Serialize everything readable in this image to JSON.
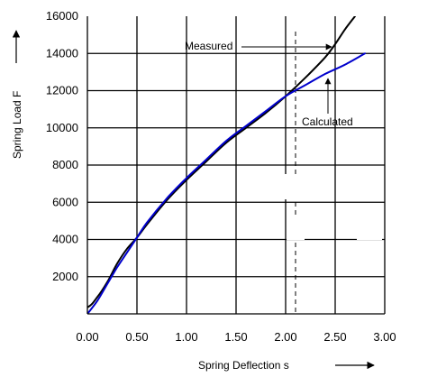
{
  "chart_data": {
    "type": "line",
    "xlabel": "Spring Deflection  s",
    "ylabel": "Spring Load  F",
    "xlim": [
      0,
      3
    ],
    "ylim": [
      0,
      16000
    ],
    "xticks": [
      0,
      0.5,
      1,
      1.5,
      2,
      2.5,
      3
    ],
    "yticks": [
      2000,
      4000,
      6000,
      8000,
      10000,
      12000,
      14000,
      16000
    ],
    "xtick_labels": [
      "0.00",
      "0.50",
      "1.00",
      "1.50",
      "2.00",
      "2.50",
      "3.00"
    ],
    "ytick_labels": [
      "2000",
      "4000",
      "6000",
      "8000",
      "10000",
      "12000",
      "14000",
      "16000"
    ],
    "grid": true,
    "reference_line_x": 2.1,
    "series": [
      {
        "name": "Measured",
        "color": "#000000",
        "x": [
          -0.5,
          -0.2,
          0,
          0.1,
          0.2,
          0.3,
          0.4,
          0.5,
          0.6,
          0.8,
          1.0,
          1.2,
          1.4,
          1.6,
          1.8,
          2.0,
          2.2,
          2.4,
          2.5,
          2.6,
          2.7
        ],
        "y": [
          0,
          100,
          350,
          900,
          1700,
          2700,
          3500,
          4100,
          4800,
          6100,
          7200,
          8200,
          9200,
          10000,
          10800,
          11700,
          12700,
          13800,
          14500,
          15300,
          16000
        ]
      },
      {
        "name": "Calculated",
        "color": "#0000cc",
        "x": [
          0,
          0.1,
          0.2,
          0.3,
          0.4,
          0.5,
          0.6,
          0.8,
          1.0,
          1.2,
          1.4,
          1.6,
          1.8,
          2.0,
          2.2,
          2.4,
          2.6,
          2.8
        ],
        "y": [
          0,
          700,
          1600,
          2500,
          3300,
          4100,
          4900,
          6200,
          7300,
          8300,
          9300,
          10100,
          10900,
          11700,
          12300,
          12900,
          13400,
          14000
        ]
      }
    ],
    "annotations": [
      {
        "text": "Measured",
        "points_to": [
          2.43,
          13800
        ]
      },
      {
        "text": "Calculated",
        "points_to": [
          2.42,
          12600
        ]
      }
    ]
  }
}
